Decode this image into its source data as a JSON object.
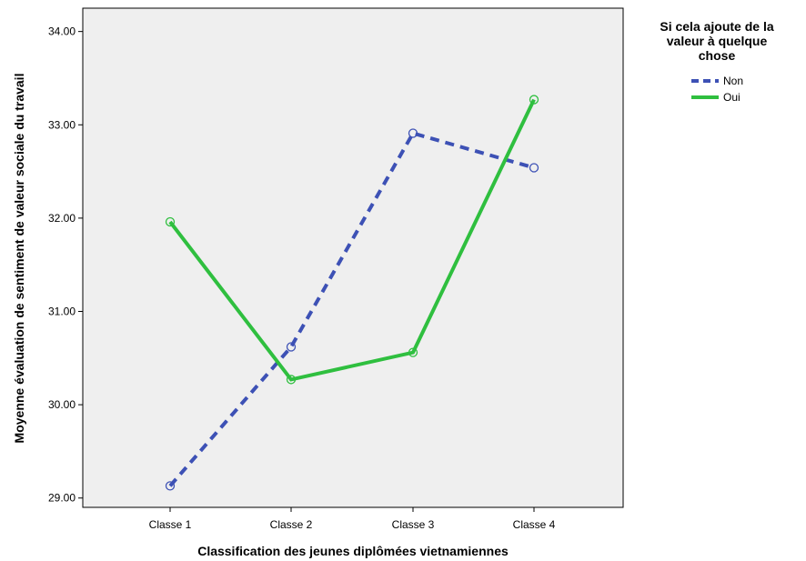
{
  "chart_data": {
    "type": "line",
    "title": "",
    "xlabel": "Classification des jeunes diplômées vietnamiennes",
    "ylabel": "Moyenne évaluation de sentiment de valeur sociale du travail",
    "categories": [
      "Classe 1",
      "Classe 2",
      "Classe 3",
      "Classe 4"
    ],
    "yticks": [
      "29.00",
      "30.00",
      "31.00",
      "32.00",
      "33.00",
      "34.00"
    ],
    "ylim": [
      28.9,
      34.25
    ],
    "grid": false,
    "legend": {
      "title_lines": [
        "Si cela ajoute de la",
        "valeur à quelque",
        "chose"
      ],
      "placement": "right"
    },
    "series": [
      {
        "name": "Non",
        "values": [
          29.13,
          30.62,
          32.91,
          32.54
        ],
        "color": "#3d51b5",
        "style": "dashed"
      },
      {
        "name": "Oui",
        "values": [
          31.96,
          30.27,
          30.56,
          33.27
        ],
        "color": "#2fbf3f",
        "style": "solid"
      }
    ],
    "plot_background": "#efefef"
  }
}
